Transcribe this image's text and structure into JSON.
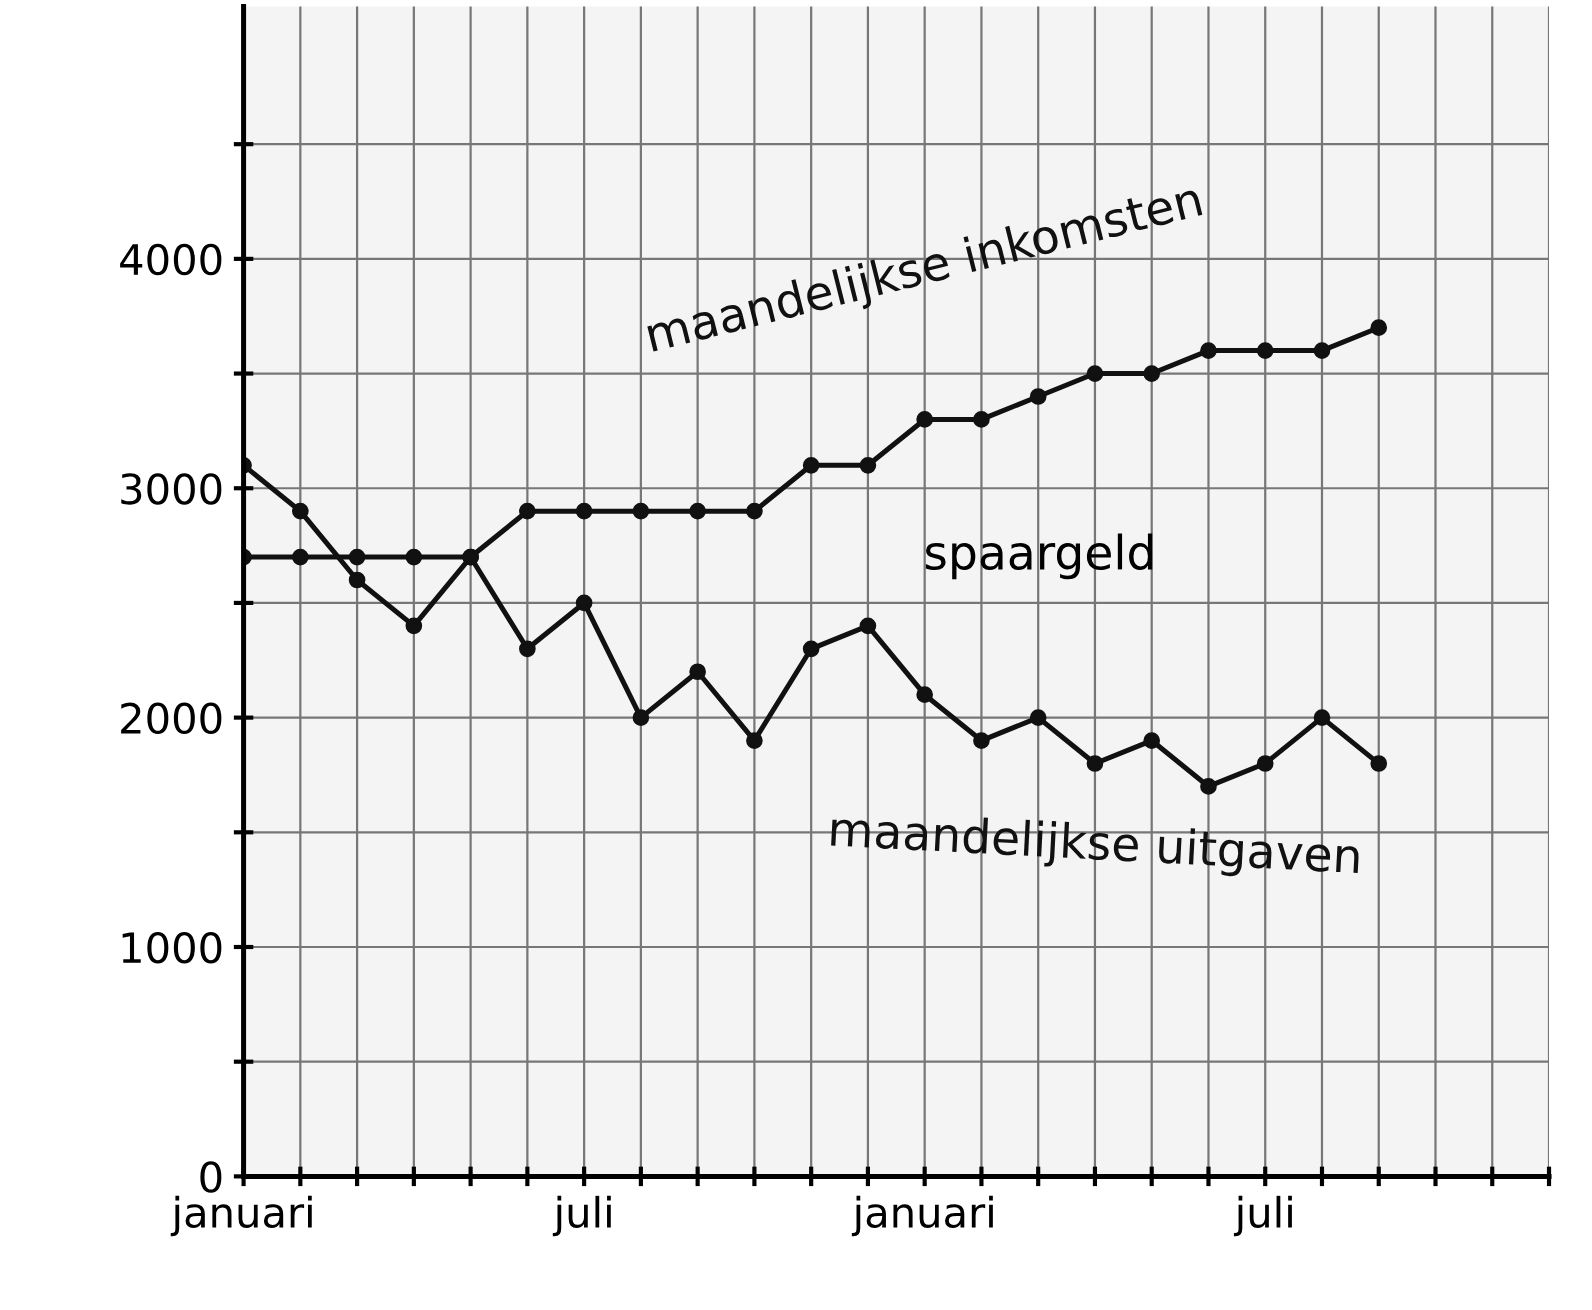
{
  "chart_data": {
    "type": "line",
    "categories": [
      "januari",
      null,
      null,
      null,
      null,
      null,
      "juli",
      null,
      null,
      null,
      null,
      null,
      "januari",
      null,
      null,
      null,
      null,
      null,
      "juli",
      null,
      null,
      null,
      null,
      null
    ],
    "series": [
      {
        "name": "maandelijkse inkomsten",
        "color": "#111111",
        "values": [
          2700,
          2700,
          2700,
          2700,
          2700,
          2900,
          2900,
          2900,
          2900,
          2900,
          3100,
          3100,
          3300,
          3300,
          3400,
          3500,
          3500,
          3600,
          3600,
          3600,
          3700,
          null,
          null,
          null
        ]
      },
      {
        "name": "maandelijkse uitgaven",
        "color": "#111111",
        "values": [
          3100,
          2900,
          2600,
          2400,
          2700,
          2300,
          2500,
          2000,
          2200,
          1900,
          2300,
          2400,
          2100,
          1900,
          2000,
          1800,
          1900,
          1700,
          1800,
          2000,
          1800,
          null,
          null,
          null
        ]
      }
    ],
    "annotations": [
      "spaargeld"
    ],
    "ylim": [
      0,
      5100
    ],
    "yticks": [
      0,
      {
        "value": 500,
        "label": null
      },
      1000,
      {
        "value": 1500,
        "label": null
      },
      2000,
      {
        "value": 2500,
        "label": null
      },
      3000,
      {
        "value": 3500,
        "label": null
      },
      4000,
      {
        "value": 4500,
        "label": null
      }
    ],
    "grid": true,
    "marker": "circle",
    "line_style": "solid"
  }
}
